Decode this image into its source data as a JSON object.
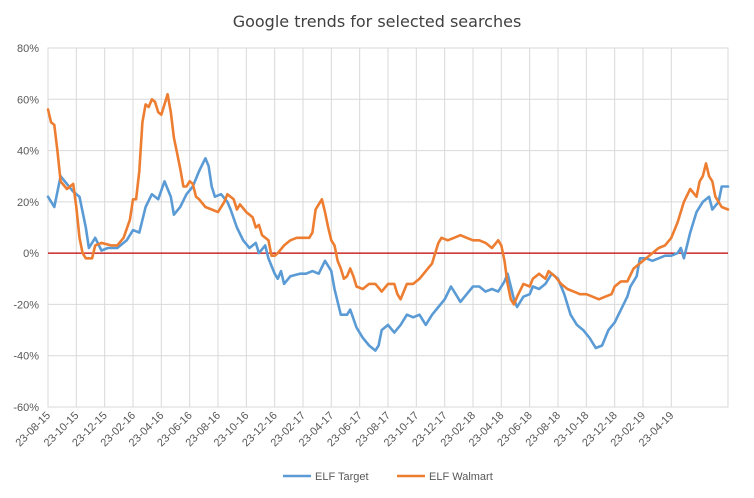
{
  "chart_data": {
    "type": "line",
    "title": "Google trends for selected searches",
    "xlabel": "",
    "ylabel": "",
    "ylim": [
      -0.6,
      0.8
    ],
    "y_ticks": [
      -0.6,
      -0.4,
      -0.2,
      0,
      0.2,
      0.4,
      0.6,
      0.8
    ],
    "y_tick_labels": [
      "-60%",
      "-40%",
      "-20%",
      "0%",
      "20%",
      "40%",
      "60%",
      "80%"
    ],
    "x_tick_labels": [
      "23-08-15",
      "23-10-15",
      "23-12-15",
      "23-02-16",
      "23-04-16",
      "23-06-16",
      "23-08-16",
      "23-10-16",
      "23-12-16",
      "23-02-17",
      "23-04-17",
      "23-06-17",
      "23-08-17",
      "23-10-17",
      "23-12-17",
      "23-02-18",
      "23-04-18",
      "23-06-18",
      "23-08-18",
      "23-10-18",
      "23-12-18",
      "23-02-19",
      "23-04-19"
    ],
    "x_weeks": 198,
    "grid": true,
    "zero_line_color": "#c00000",
    "legend_position": "bottom",
    "series": [
      {
        "name": "ELF Target",
        "color": "#5b9bd5",
        "points": [
          [
            0,
            0.22
          ],
          [
            2,
            0.18
          ],
          [
            4,
            0.3
          ],
          [
            6,
            0.27
          ],
          [
            8,
            0.24
          ],
          [
            10,
            0.22
          ],
          [
            12,
            0.1
          ],
          [
            13,
            0.02
          ],
          [
            15,
            0.06
          ],
          [
            17,
            0.01
          ],
          [
            19,
            0.02
          ],
          [
            22,
            0.02
          ],
          [
            25,
            0.05
          ],
          [
            27,
            0.09
          ],
          [
            29,
            0.08
          ],
          [
            31,
            0.18
          ],
          [
            33,
            0.23
          ],
          [
            35,
            0.21
          ],
          [
            37,
            0.28
          ],
          [
            39,
            0.22
          ],
          [
            40,
            0.15
          ],
          [
            42,
            0.18
          ],
          [
            44,
            0.23
          ],
          [
            46,
            0.26
          ],
          [
            48,
            0.32
          ],
          [
            50,
            0.37
          ],
          [
            51,
            0.34
          ],
          [
            52,
            0.26
          ],
          [
            53,
            0.22
          ],
          [
            55,
            0.23
          ],
          [
            57,
            0.2
          ],
          [
            58,
            0.17
          ],
          [
            60,
            0.1
          ],
          [
            62,
            0.05
          ],
          [
            64,
            0.02
          ],
          [
            66,
            0.04
          ],
          [
            67,
            0.0
          ],
          [
            69,
            0.03
          ],
          [
            70,
            -0.02
          ],
          [
            72,
            -0.08
          ],
          [
            73,
            -0.1
          ],
          [
            74,
            -0.07
          ],
          [
            75,
            -0.12
          ],
          [
            77,
            -0.09
          ],
          [
            80,
            -0.08
          ],
          [
            82,
            -0.08
          ],
          [
            84,
            -0.07
          ],
          [
            86,
            -0.08
          ],
          [
            88,
            -0.03
          ],
          [
            90,
            -0.07
          ],
          [
            91,
            -0.14
          ],
          [
            93,
            -0.24
          ],
          [
            95,
            -0.24
          ],
          [
            96,
            -0.22
          ],
          [
            98,
            -0.29
          ],
          [
            100,
            -0.33
          ],
          [
            102,
            -0.36
          ],
          [
            104,
            -0.38
          ],
          [
            105,
            -0.36
          ],
          [
            106,
            -0.3
          ],
          [
            108,
            -0.28
          ],
          [
            110,
            -0.31
          ],
          [
            112,
            -0.28
          ],
          [
            114,
            -0.24
          ],
          [
            116,
            -0.25
          ],
          [
            118,
            -0.24
          ],
          [
            119,
            -0.26
          ],
          [
            120,
            -0.28
          ],
          [
            122,
            -0.24
          ],
          [
            124,
            -0.21
          ],
          [
            126,
            -0.18
          ],
          [
            128,
            -0.13
          ],
          [
            130,
            -0.17
          ],
          [
            131,
            -0.19
          ],
          [
            133,
            -0.16
          ],
          [
            135,
            -0.13
          ],
          [
            137,
            -0.13
          ],
          [
            139,
            -0.15
          ],
          [
            141,
            -0.14
          ],
          [
            143,
            -0.15
          ],
          [
            145,
            -0.11
          ],
          [
            146,
            -0.08
          ],
          [
            147,
            -0.13
          ],
          [
            148,
            -0.18
          ],
          [
            149,
            -0.21
          ],
          [
            151,
            -0.17
          ],
          [
            153,
            -0.16
          ],
          [
            154,
            -0.13
          ],
          [
            156,
            -0.14
          ],
          [
            158,
            -0.12
          ],
          [
            160,
            -0.08
          ],
          [
            162,
            -0.1
          ],
          [
            164,
            -0.16
          ],
          [
            166,
            -0.24
          ],
          [
            168,
            -0.28
          ],
          [
            170,
            -0.3
          ],
          [
            172,
            -0.33
          ],
          [
            174,
            -0.37
          ],
          [
            176,
            -0.36
          ],
          [
            178,
            -0.3
          ],
          [
            180,
            -0.27
          ],
          [
            182,
            -0.22
          ],
          [
            184,
            -0.17
          ],
          [
            185,
            -0.13
          ],
          [
            187,
            -0.09
          ],
          [
            188,
            -0.02
          ],
          [
            190,
            -0.02
          ],
          [
            192,
            -0.03
          ],
          [
            194,
            -0.02
          ],
          [
            196,
            -0.01
          ],
          [
            198,
            -0.01
          ],
          [
            200,
            0.0
          ],
          [
            201,
            0.02
          ],
          [
            202,
            -0.02
          ],
          [
            204,
            0.08
          ],
          [
            206,
            0.16
          ],
          [
            208,
            0.2
          ],
          [
            210,
            0.22
          ],
          [
            211,
            0.17
          ],
          [
            213,
            0.2
          ],
          [
            214,
            0.26
          ],
          [
            216,
            0.26
          ]
        ]
      },
      {
        "name": "ELF Walmart",
        "color": "#ed7d31",
        "points": [
          [
            0,
            0.56
          ],
          [
            1,
            0.51
          ],
          [
            2,
            0.5
          ],
          [
            3,
            0.4
          ],
          [
            4,
            0.28
          ],
          [
            6,
            0.25
          ],
          [
            8,
            0.27
          ],
          [
            9,
            0.18
          ],
          [
            10,
            0.06
          ],
          [
            11,
            0.0
          ],
          [
            12,
            -0.02
          ],
          [
            14,
            -0.02
          ],
          [
            15,
            0.03
          ],
          [
            17,
            0.04
          ],
          [
            20,
            0.03
          ],
          [
            22,
            0.03
          ],
          [
            24,
            0.06
          ],
          [
            26,
            0.13
          ],
          [
            27,
            0.21
          ],
          [
            28,
            0.21
          ],
          [
            29,
            0.32
          ],
          [
            30,
            0.51
          ],
          [
            31,
            0.58
          ],
          [
            32,
            0.57
          ],
          [
            33,
            0.6
          ],
          [
            34,
            0.59
          ],
          [
            35,
            0.55
          ],
          [
            36,
            0.54
          ],
          [
            37,
            0.58
          ],
          [
            38,
            0.62
          ],
          [
            39,
            0.55
          ],
          [
            40,
            0.45
          ],
          [
            41,
            0.39
          ],
          [
            42,
            0.33
          ],
          [
            43,
            0.26
          ],
          [
            44,
            0.26
          ],
          [
            45,
            0.28
          ],
          [
            46,
            0.27
          ],
          [
            47,
            0.22
          ],
          [
            48,
            0.21
          ],
          [
            50,
            0.18
          ],
          [
            52,
            0.17
          ],
          [
            54,
            0.16
          ],
          [
            56,
            0.2
          ],
          [
            57,
            0.23
          ],
          [
            59,
            0.21
          ],
          [
            60,
            0.17
          ],
          [
            61,
            0.19
          ],
          [
            63,
            0.16
          ],
          [
            65,
            0.14
          ],
          [
            66,
            0.1
          ],
          [
            67,
            0.11
          ],
          [
            68,
            0.07
          ],
          [
            70,
            0.05
          ],
          [
            71,
            -0.01
          ],
          [
            72,
            -0.01
          ],
          [
            73,
            0.0
          ],
          [
            75,
            0.03
          ],
          [
            77,
            0.05
          ],
          [
            79,
            0.06
          ],
          [
            81,
            0.06
          ],
          [
            83,
            0.06
          ],
          [
            84,
            0.08
          ],
          [
            85,
            0.17
          ],
          [
            86,
            0.19
          ],
          [
            87,
            0.21
          ],
          [
            88,
            0.16
          ],
          [
            89,
            0.1
          ],
          [
            90,
            0.05
          ],
          [
            91,
            0.03
          ],
          [
            92,
            -0.03
          ],
          [
            93,
            -0.06
          ],
          [
            94,
            -0.1
          ],
          [
            95,
            -0.09
          ],
          [
            96,
            -0.06
          ],
          [
            97,
            -0.09
          ],
          [
            98,
            -0.13
          ],
          [
            100,
            -0.14
          ],
          [
            102,
            -0.12
          ],
          [
            104,
            -0.12
          ],
          [
            106,
            -0.15
          ],
          [
            108,
            -0.12
          ],
          [
            110,
            -0.12
          ],
          [
            111,
            -0.16
          ],
          [
            112,
            -0.18
          ],
          [
            113,
            -0.15
          ],
          [
            114,
            -0.12
          ],
          [
            116,
            -0.12
          ],
          [
            118,
            -0.1
          ],
          [
            120,
            -0.07
          ],
          [
            122,
            -0.04
          ],
          [
            123,
            0.0
          ],
          [
            124,
            0.04
          ],
          [
            125,
            0.06
          ],
          [
            127,
            0.05
          ],
          [
            129,
            0.06
          ],
          [
            131,
            0.07
          ],
          [
            133,
            0.06
          ],
          [
            135,
            0.05
          ],
          [
            137,
            0.05
          ],
          [
            139,
            0.04
          ],
          [
            141,
            0.02
          ],
          [
            143,
            0.05
          ],
          [
            144,
            0.03
          ],
          [
            145,
            -0.03
          ],
          [
            146,
            -0.12
          ],
          [
            147,
            -0.18
          ],
          [
            148,
            -0.2
          ],
          [
            149,
            -0.17
          ],
          [
            151,
            -0.12
          ],
          [
            153,
            -0.13
          ],
          [
            154,
            -0.1
          ],
          [
            156,
            -0.08
          ],
          [
            158,
            -0.1
          ],
          [
            159,
            -0.07
          ],
          [
            161,
            -0.09
          ],
          [
            163,
            -0.12
          ],
          [
            165,
            -0.14
          ],
          [
            167,
            -0.15
          ],
          [
            169,
            -0.16
          ],
          [
            171,
            -0.16
          ],
          [
            173,
            -0.17
          ],
          [
            175,
            -0.18
          ],
          [
            177,
            -0.17
          ],
          [
            179,
            -0.16
          ],
          [
            180,
            -0.13
          ],
          [
            182,
            -0.11
          ],
          [
            184,
            -0.11
          ],
          [
            186,
            -0.06
          ],
          [
            188,
            -0.04
          ],
          [
            190,
            -0.02
          ],
          [
            192,
            0.0
          ],
          [
            194,
            0.02
          ],
          [
            196,
            0.03
          ],
          [
            198,
            0.06
          ],
          [
            200,
            0.12
          ],
          [
            202,
            0.2
          ],
          [
            204,
            0.25
          ],
          [
            206,
            0.22
          ],
          [
            207,
            0.28
          ],
          [
            208,
            0.3
          ],
          [
            209,
            0.35
          ],
          [
            210,
            0.3
          ],
          [
            211,
            0.28
          ],
          [
            212,
            0.22
          ],
          [
            214,
            0.18
          ],
          [
            216,
            0.17
          ]
        ]
      }
    ]
  }
}
